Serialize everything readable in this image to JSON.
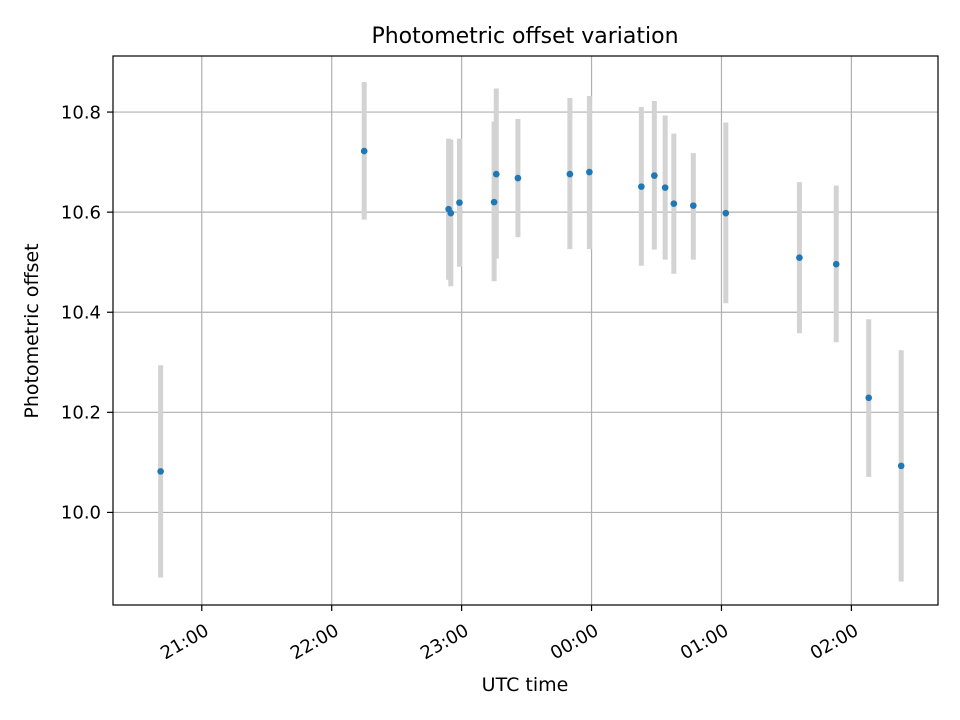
{
  "chart_data": {
    "type": "scatter",
    "title": "Photometric offset variation",
    "xlabel": "UTC time",
    "ylabel": "Photometric offset",
    "x_axis": {
      "type": "time",
      "ticks": [
        "21:00",
        "22:00",
        "23:00",
        "00:00",
        "01:00",
        "02:00"
      ],
      "range": [
        "20:19",
        "02:40"
      ]
    },
    "y_axis": {
      "ticks": [
        "10.0",
        "10.2",
        "10.4",
        "10.6",
        "10.8"
      ],
      "range": [
        9.815,
        10.912
      ]
    },
    "grid": true,
    "series": [
      {
        "color": "#1f77b4",
        "errorbar_color": "#d3d3d3",
        "points": [
          {
            "x": "20:41",
            "y": 10.082,
            "ylow": 9.87,
            "yhigh": 10.294
          },
          {
            "x": "22:15",
            "y": 10.722,
            "ylow": 10.585,
            "yhigh": 10.86
          },
          {
            "x": "22:54",
            "y": 10.606,
            "ylow": 10.465,
            "yhigh": 10.747
          },
          {
            "x": "22:55",
            "y": 10.598,
            "ylow": 10.452,
            "yhigh": 10.745
          },
          {
            "x": "22:59",
            "y": 10.619,
            "ylow": 10.491,
            "yhigh": 10.747
          },
          {
            "x": "23:15",
            "y": 10.62,
            "ylow": 10.462,
            "yhigh": 10.781
          },
          {
            "x": "23:16",
            "y": 10.676,
            "ylow": 10.507,
            "yhigh": 10.847
          },
          {
            "x": "23:26",
            "y": 10.668,
            "ylow": 10.55,
            "yhigh": 10.786
          },
          {
            "x": "23:50",
            "y": 10.676,
            "ylow": 10.526,
            "yhigh": 10.828
          },
          {
            "x": "23:59",
            "y": 10.68,
            "ylow": 10.526,
            "yhigh": 10.832
          },
          {
            "x": "00:23",
            "y": 10.651,
            "ylow": 10.493,
            "yhigh": 10.81
          },
          {
            "x": "00:29",
            "y": 10.673,
            "ylow": 10.525,
            "yhigh": 10.822
          },
          {
            "x": "00:34",
            "y": 10.649,
            "ylow": 10.505,
            "yhigh": 10.793
          },
          {
            "x": "00:38",
            "y": 10.617,
            "ylow": 10.477,
            "yhigh": 10.757
          },
          {
            "x": "00:47",
            "y": 10.613,
            "ylow": 10.505,
            "yhigh": 10.718
          },
          {
            "x": "01:02",
            "y": 10.598,
            "ylow": 10.418,
            "yhigh": 10.779
          },
          {
            "x": "01:36",
            "y": 10.509,
            "ylow": 10.358,
            "yhigh": 10.66
          },
          {
            "x": "01:53",
            "y": 10.496,
            "ylow": 10.34,
            "yhigh": 10.653
          },
          {
            "x": "02:08",
            "y": 10.229,
            "ylow": 10.071,
            "yhigh": 10.386
          },
          {
            "x": "02:23",
            "y": 10.093,
            "ylow": 9.862,
            "yhigh": 10.324
          }
        ]
      }
    ]
  }
}
